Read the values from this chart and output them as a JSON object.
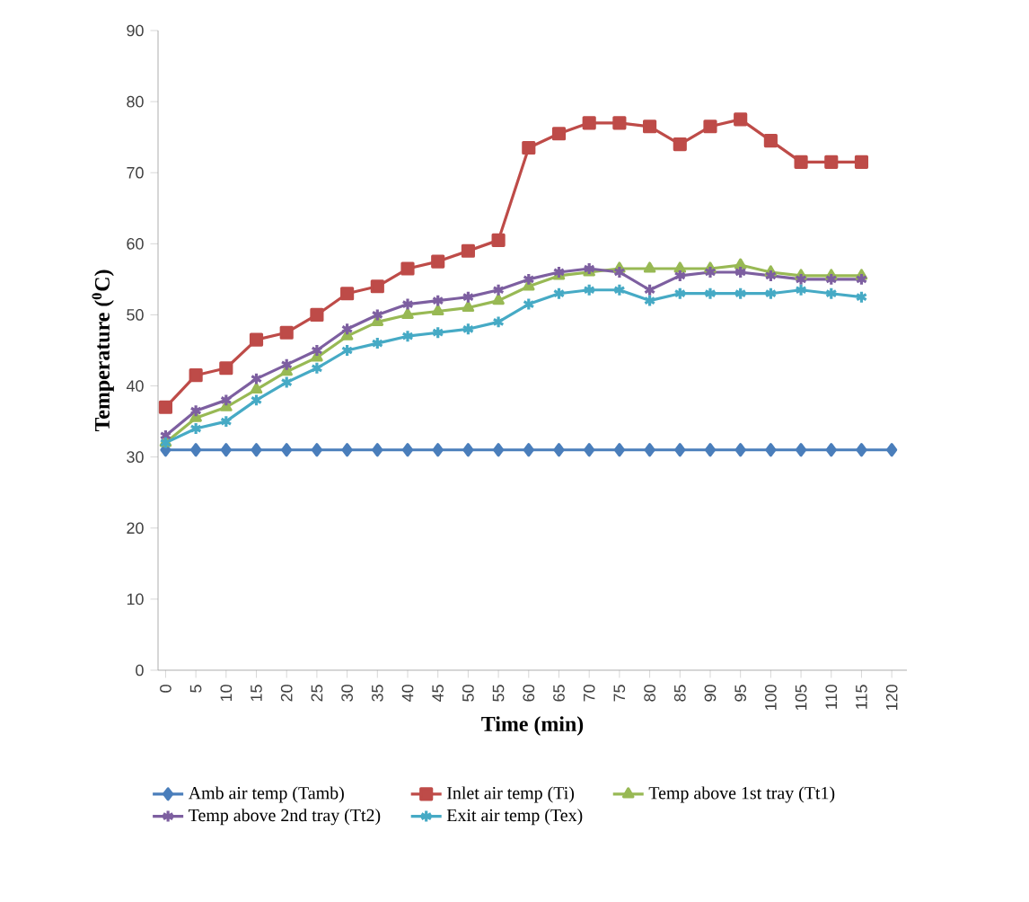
{
  "chart_data": {
    "type": "line",
    "xlabel": "Time (min)",
    "ylabel": "Temperature ($^{0}$C)",
    "categories": [
      "0",
      "5",
      "10",
      "15",
      "20",
      "25",
      "30",
      "35",
      "40",
      "45",
      "50",
      "55",
      "60",
      "65",
      "70",
      "75",
      "80",
      "85",
      "90",
      "95",
      "100",
      "105",
      "110",
      "115",
      "120"
    ],
    "ylim": [
      0,
      90
    ],
    "yticks": [
      0,
      10,
      20,
      30,
      40,
      50,
      60,
      70,
      80,
      90
    ],
    "legend": "bottom",
    "line_style": "solid",
    "series": [
      {
        "name": "Amb air temp (Tamb)",
        "color": "#4a7ebb",
        "marker": "diamond",
        "values": [
          31,
          31,
          31,
          31,
          31,
          31,
          31,
          31,
          31,
          31,
          31,
          31,
          31,
          31,
          31,
          31,
          31,
          31,
          31,
          31,
          31,
          31,
          31,
          31,
          31
        ]
      },
      {
        "name": "Inlet air temp (Ti)",
        "color": "#be4b48",
        "marker": "square",
        "values": [
          37,
          41.5,
          42.5,
          46.5,
          47.5,
          50,
          53,
          54,
          56.5,
          57.5,
          59,
          60.5,
          73.5,
          75.5,
          77,
          77,
          76.5,
          74,
          76.5,
          77.5,
          74.5,
          71.5,
          71.5,
          71.5,
          null
        ]
      },
      {
        "name": "Temp above 1st tray (Tt1)",
        "color": "#98b954",
        "marker": "triangle",
        "values": [
          32,
          35.5,
          37,
          39.5,
          42,
          44,
          47,
          49,
          50,
          50.5,
          51,
          52,
          54,
          55.5,
          56,
          56.5,
          56.5,
          56.5,
          56.5,
          57,
          56,
          55.5,
          55.5,
          55.5,
          null
        ]
      },
      {
        "name": "Temp above 2nd tray (Tt2)",
        "color": "#7d5fa0",
        "marker": "cross",
        "values": [
          33,
          36.5,
          38,
          41,
          43,
          45,
          48,
          50,
          51.5,
          52,
          52.5,
          53.5,
          55,
          56,
          56.5,
          56,
          53.5,
          55.5,
          56,
          56,
          55.5,
          55,
          55,
          55,
          null
        ]
      },
      {
        "name": "Exit air temp (Tex)",
        "color": "#46aac5",
        "marker": "cross",
        "values": [
          32,
          34,
          35,
          38,
          40.5,
          42.5,
          45,
          46,
          47,
          47.5,
          48,
          49,
          51.5,
          53,
          53.5,
          53.5,
          52,
          53,
          53,
          53,
          53,
          53.5,
          53,
          52.5,
          null
        ]
      }
    ]
  }
}
